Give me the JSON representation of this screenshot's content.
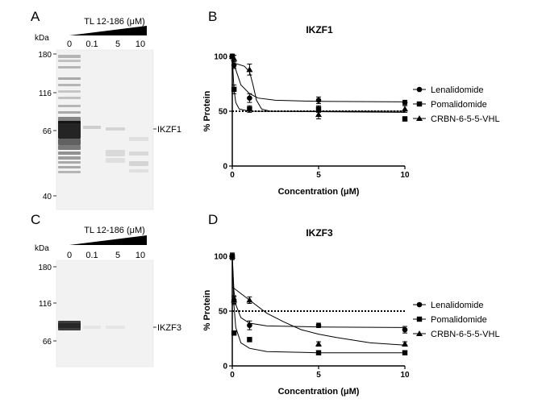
{
  "figure": {
    "panel_letters": [
      "A",
      "B",
      "C",
      "D"
    ],
    "gel_A": {
      "title": "TL 12-186 (μM)",
      "unit": "kDa",
      "lanes": [
        "0",
        "0.1",
        "5",
        "10"
      ],
      "markers": [
        "180",
        "116",
        "66",
        "40"
      ],
      "band_label": "IKZF1"
    },
    "gel_C": {
      "title": "TL 12-186 (μM)",
      "unit": "kDa",
      "lanes": [
        "0",
        "0.1",
        "5",
        "10"
      ],
      "markers": [
        "180",
        "116",
        "66"
      ],
      "band_label": "IKZF3"
    }
  },
  "chart_data": [
    {
      "type": "scatter",
      "title": "IKZF1",
      "xlabel": "Concentration (μM)",
      "ylabel": "% Protein",
      "xlim": [
        0,
        10
      ],
      "ylim": [
        0,
        100
      ],
      "xticks": [
        "0",
        "5",
        "10"
      ],
      "yticks": [
        "0",
        "50",
        "100"
      ],
      "reference_line": 50,
      "legend_position": "right",
      "series": [
        {
          "name": "Lenalidomide",
          "marker": "circle",
          "x": [
            0,
            0.1,
            1,
            5,
            10
          ],
          "y": [
            100,
            92,
            62,
            60,
            58
          ],
          "err": [
            2,
            3,
            4,
            3,
            2
          ],
          "fit": [
            [
              0,
              100
            ],
            [
              0.2,
              88
            ],
            [
              0.5,
              74
            ],
            [
              1,
              66
            ],
            [
              1.5,
              62
            ],
            [
              2.5,
              60
            ],
            [
              5,
              59
            ],
            [
              10,
              58.5
            ]
          ]
        },
        {
          "name": "Pomalidomide",
          "marker": "square",
          "x": [
            0,
            0.1,
            1,
            5,
            10
          ],
          "y": [
            100,
            70,
            52,
            52,
            43
          ],
          "err": [
            2,
            4,
            3,
            3,
            2
          ],
          "fit": [
            [
              0,
              100
            ],
            [
              0.05,
              84
            ],
            [
              0.1,
              70
            ],
            [
              0.2,
              58
            ],
            [
              0.4,
              52
            ],
            [
              1,
              50
            ],
            [
              10,
              49
            ]
          ]
        },
        {
          "name": "CRBN-6-5-5-VHL",
          "marker": "triangle",
          "x": [
            0,
            0.1,
            1,
            5,
            10
          ],
          "y": [
            100,
            98,
            88,
            47,
            52
          ],
          "err": [
            2,
            3,
            5,
            4,
            3
          ],
          "fit": [
            [
              0,
              94
            ],
            [
              0.3,
              93
            ],
            [
              0.7,
              91
            ],
            [
              1,
              86
            ],
            [
              1.2,
              74
            ],
            [
              1.4,
              60
            ],
            [
              1.7,
              52
            ],
            [
              2.2,
              50
            ],
            [
              10,
              50
            ]
          ]
        }
      ]
    },
    {
      "type": "scatter",
      "title": "IKZF3",
      "xlabel": "Concentration (μM)",
      "ylabel": "% Protein",
      "xlim": [
        0,
        10
      ],
      "ylim": [
        0,
        100
      ],
      "xticks": [
        "0",
        "5",
        "10"
      ],
      "yticks": [
        "0",
        "50",
        "100"
      ],
      "reference_line": 50,
      "legend_position": "right",
      "series": [
        {
          "name": "Lenalidomide",
          "marker": "circle",
          "x": [
            0,
            0.1,
            1,
            5,
            10
          ],
          "y": [
            100,
            60,
            37,
            37,
            33
          ],
          "err": [
            3,
            4,
            4,
            2,
            3
          ],
          "fit": [
            [
              0,
              100
            ],
            [
              0.1,
              68
            ],
            [
              0.2,
              56
            ],
            [
              0.5,
              44
            ],
            [
              1,
              39
            ],
            [
              2,
              36.5
            ],
            [
              5,
              35.5
            ],
            [
              10,
              35
            ]
          ]
        },
        {
          "name": "Pomalidomide",
          "marker": "square",
          "x": [
            0,
            0.1,
            1,
            5,
            10
          ],
          "y": [
            100,
            30,
            24,
            12,
            12
          ],
          "err": [
            3,
            2,
            2,
            1,
            1
          ],
          "fit": [
            [
              0,
              100
            ],
            [
              0.1,
              55
            ],
            [
              0.2,
              35
            ],
            [
              0.5,
              21
            ],
            [
              1,
              16
            ],
            [
              2,
              13
            ],
            [
              5,
              12
            ],
            [
              10,
              12
            ]
          ]
        },
        {
          "name": "CRBN-6-5-5-VHL",
          "marker": "triangle",
          "x": [
            0,
            0.1,
            1,
            5,
            10
          ],
          "y": [
            100,
            60,
            60,
            20,
            20
          ],
          "err": [
            2,
            3,
            3,
            2,
            2
          ],
          "fit": [
            [
              0,
              72
            ],
            [
              1,
              60
            ],
            [
              2,
              48
            ],
            [
              3,
              40
            ],
            [
              4,
              33
            ],
            [
              5,
              29
            ],
            [
              6,
              26
            ],
            [
              8,
              21
            ],
            [
              10,
              19
            ]
          ]
        }
      ]
    }
  ]
}
